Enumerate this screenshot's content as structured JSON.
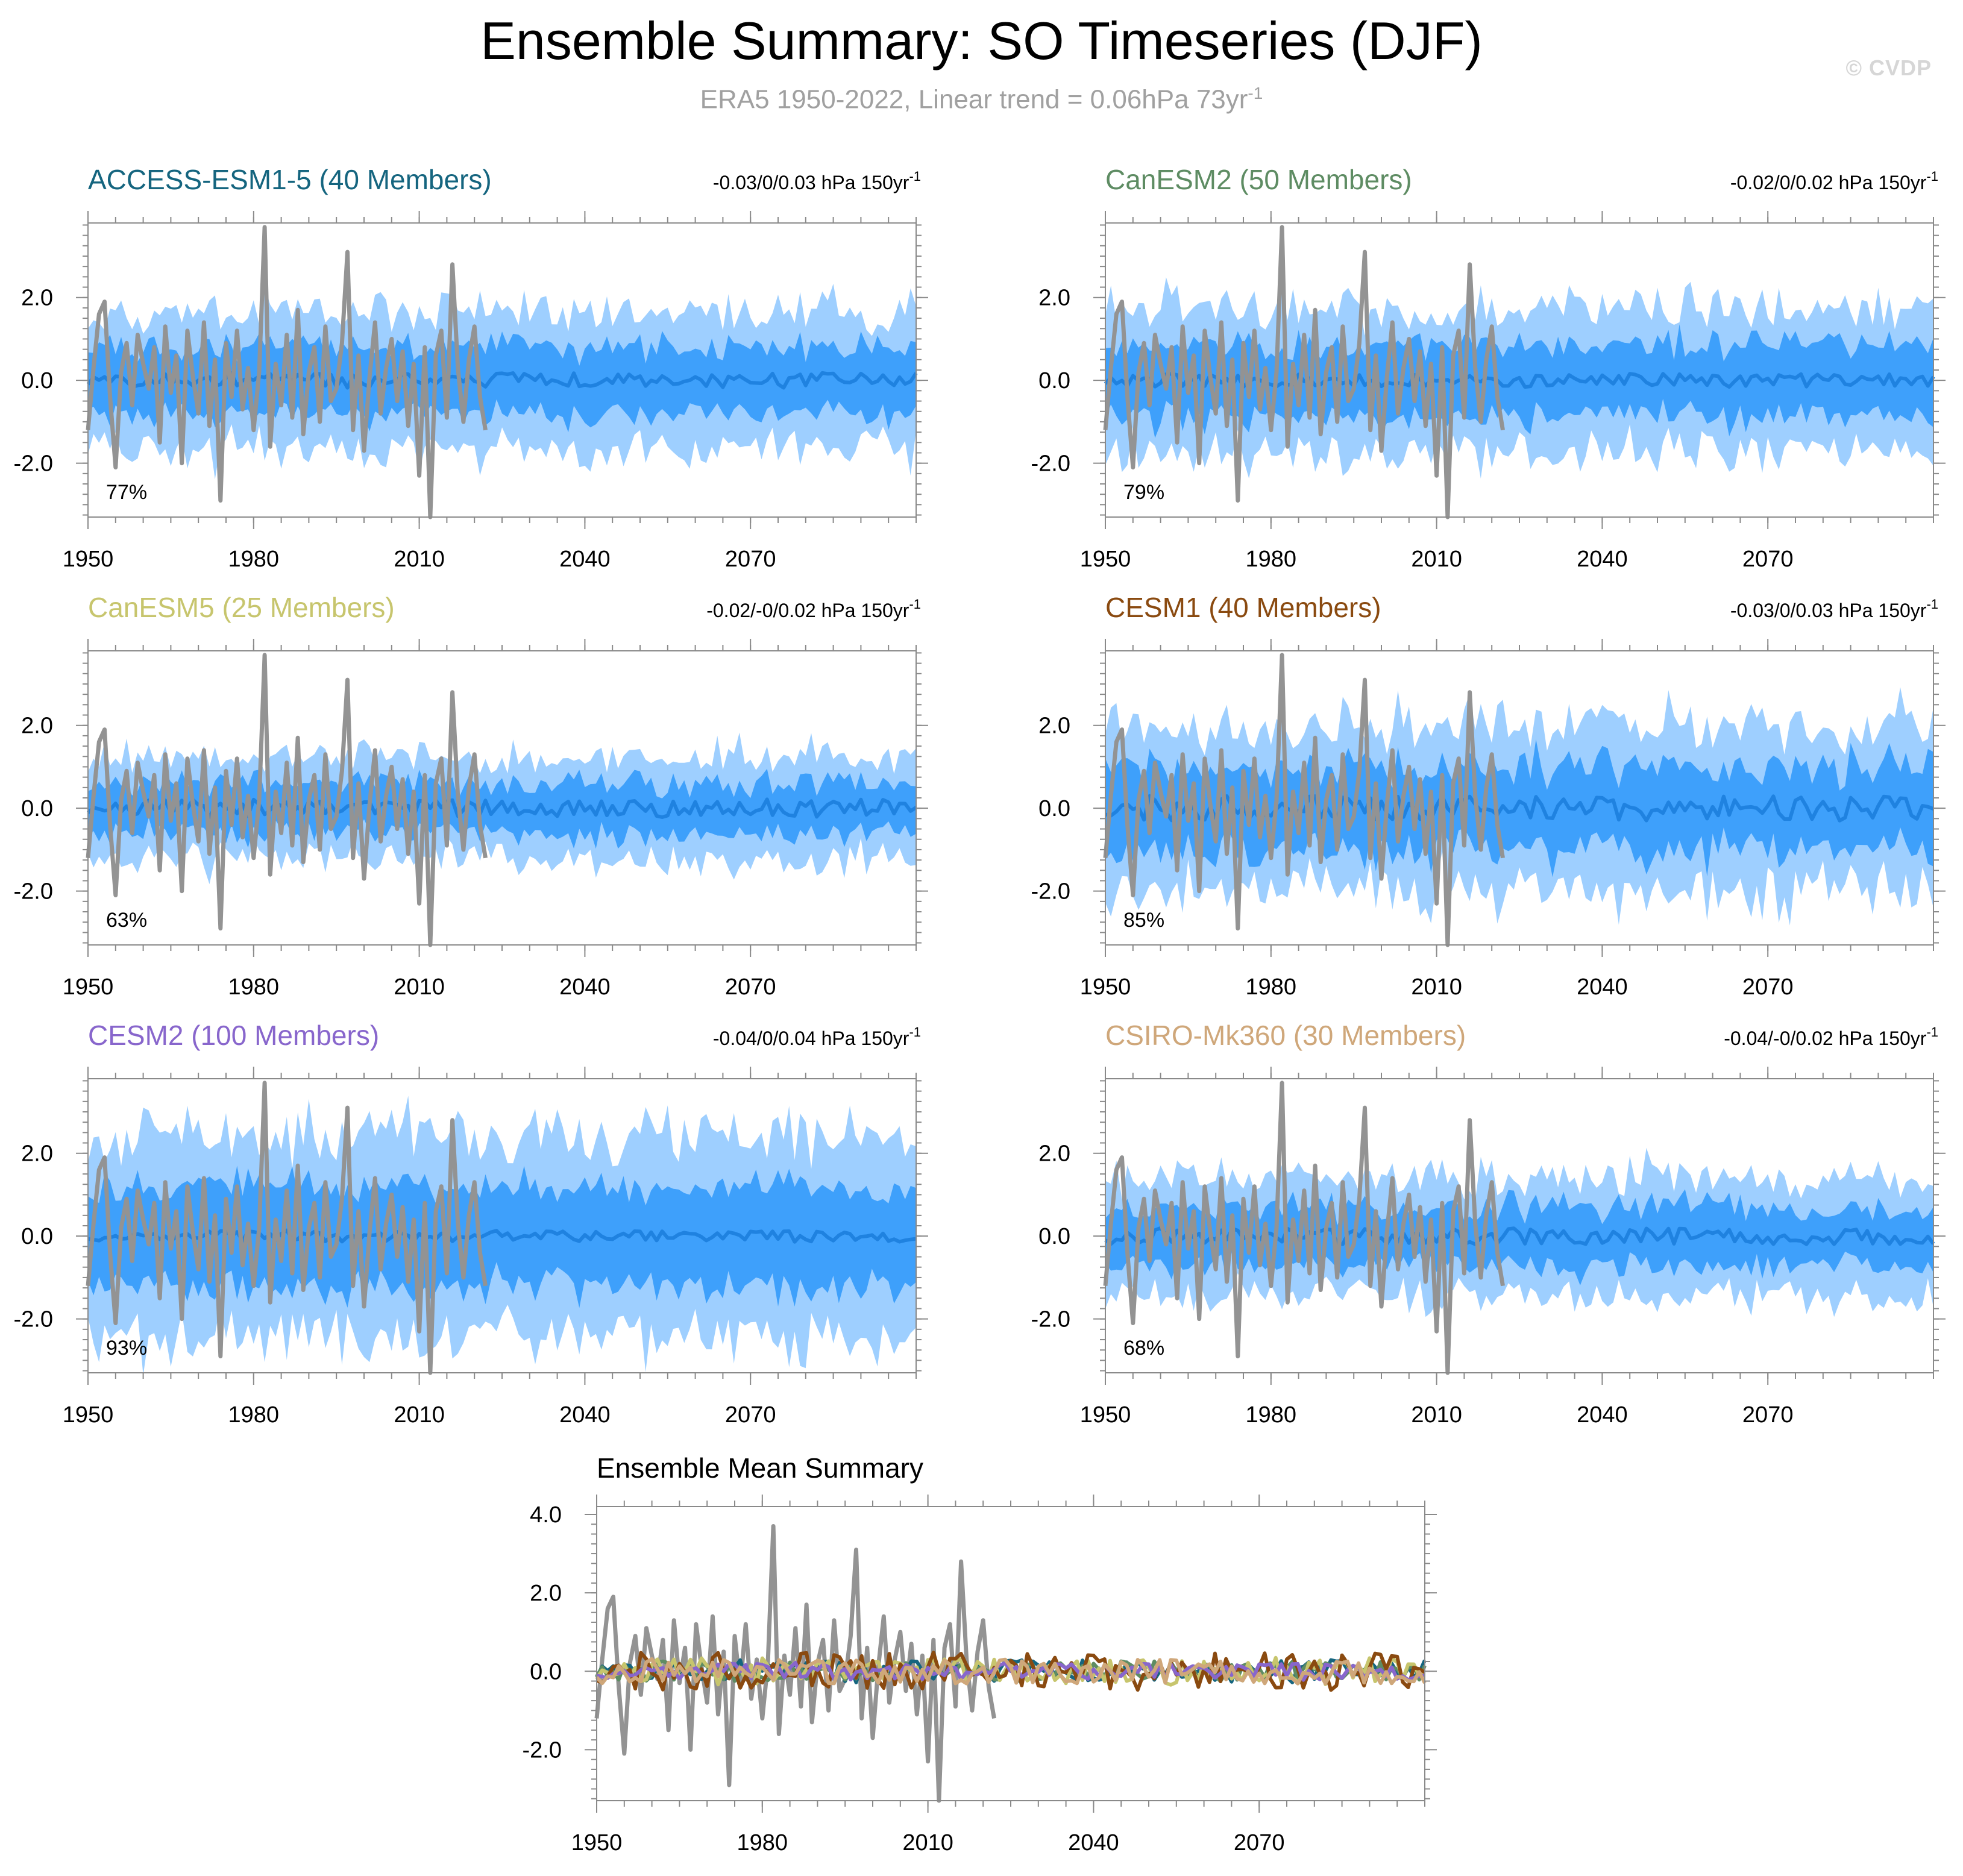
{
  "figure": {
    "title": "Ensemble Summary: SO Timeseries (DJF)",
    "subtitle_main": "ERA5 1950-2022, Linear trend = 0.06hPa 73yr",
    "subtitle_sup": "-1",
    "watermark": "© CVDP"
  },
  "colors": {
    "outer_band": "#9ecfff",
    "inner_band": "#3ea0fb",
    "ensemble_mean": "#1f82e0",
    "observations": "#939393"
  },
  "chart_data": [
    {
      "type": "area",
      "model": "ACCESS-ESM1-5",
      "members_label": "(40 Members)",
      "title_color": "#15657f",
      "trend_text": "-0.03/0/0.03 hPa 150yr",
      "trend_sup": "-1",
      "percent": "77%",
      "xlim": [
        1950,
        2100
      ],
      "ylim": [
        -3.3,
        3.8
      ],
      "xticks": [
        "1950",
        "1980",
        "2010",
        "2040",
        "2070"
      ],
      "yticks": [
        "2.0",
        "0.0",
        "-2.0"
      ],
      "spread_outer": 1.6,
      "spread_inner": 0.8,
      "mean_amp": 0.18,
      "seed": 11
    },
    {
      "type": "area",
      "model": "CanESM2",
      "members_label": "(50 Members)",
      "title_color": "#5e8c63",
      "trend_text": "-0.02/0/0.02 hPa 150yr",
      "trend_sup": "-1",
      "percent": "79%",
      "xlim": [
        1950,
        2100
      ],
      "ylim": [
        -3.3,
        3.8
      ],
      "xticks": [
        "1950",
        "1980",
        "2010",
        "2040",
        "2070"
      ],
      "yticks": [
        "2.0",
        "0.0",
        "-2.0"
      ],
      "spread_outer": 1.7,
      "spread_inner": 0.85,
      "mean_amp": 0.16,
      "seed": 23
    },
    {
      "type": "area",
      "model": "CanESM5",
      "members_label": "(25 Members)",
      "title_color": "#c7c56d",
      "trend_text": "-0.02/-0/0.02 hPa 150yr",
      "trend_sup": "-1",
      "percent": "63%",
      "xlim": [
        1950,
        2100
      ],
      "ylim": [
        -3.3,
        3.8
      ],
      "xticks": [
        "1950",
        "1980",
        "2010",
        "2040",
        "2070"
      ],
      "yticks": [
        "2.0",
        "0.0",
        "-2.0"
      ],
      "spread_outer": 1.2,
      "spread_inner": 0.6,
      "mean_amp": 0.22,
      "seed": 37
    },
    {
      "type": "area",
      "model": "CESM1",
      "members_label": "(40 Members)",
      "title_color": "#8a4a10",
      "trend_text": "-0.03/0/0.03 hPa 150yr",
      "trend_sup": "-1",
      "percent": "85%",
      "xlim": [
        1950,
        2100
      ],
      "ylim": [
        -3.3,
        3.8
      ],
      "xticks": [
        "1950",
        "1980",
        "2010",
        "2040",
        "2070"
      ],
      "yticks": [
        "2.0",
        "0.0",
        "-2.0"
      ],
      "spread_outer": 1.9,
      "spread_inner": 1.0,
      "mean_amp": 0.3,
      "seed": 41
    },
    {
      "type": "area",
      "model": "CESM2",
      "members_label": "(100 Members)",
      "title_color": "#8866cc",
      "trend_text": "-0.04/0/0.04 hPa 150yr",
      "trend_sup": "-1",
      "percent": "93%",
      "xlim": [
        1950,
        2100
      ],
      "ylim": [
        -3.3,
        3.8
      ],
      "xticks": [
        "1950",
        "1980",
        "2010",
        "2040",
        "2070"
      ],
      "yticks": [
        "2.0",
        "0.0",
        "-2.0"
      ],
      "spread_outer": 2.4,
      "spread_inner": 1.2,
      "mean_amp": 0.14,
      "seed": 53
    },
    {
      "type": "area",
      "model": "CSIRO-Mk360",
      "members_label": "(30 Members)",
      "title_color": "#cfa77a",
      "trend_text": "-0.04/-0/0.02 hPa 150yr",
      "trend_sup": "-1",
      "percent": "68%",
      "xlim": [
        1950,
        2100
      ],
      "ylim": [
        -3.3,
        3.8
      ],
      "xticks": [
        "1950",
        "1980",
        "2010",
        "2040",
        "2070"
      ],
      "yticks": [
        "2.0",
        "0.0",
        "-2.0"
      ],
      "spread_outer": 1.4,
      "spread_inner": 0.7,
      "mean_amp": 0.2,
      "seed": 67
    },
    {
      "type": "line",
      "model": "Ensemble Mean Summary",
      "xlim": [
        1950,
        2100
      ],
      "ylim": [
        -3.3,
        4.2
      ],
      "xticks": [
        "1950",
        "1980",
        "2010",
        "2040",
        "2070"
      ],
      "yticks": [
        "4.0",
        "2.0",
        "0.0",
        "-2.0"
      ],
      "series_colors": [
        "#15657f",
        "#5e8c63",
        "#c7c56d",
        "#8a4a10",
        "#8866cc",
        "#cfa77a"
      ]
    }
  ],
  "observed_series": {
    "name": "ERA5",
    "x_start": 1950,
    "values": [
      -1.2,
      0.3,
      1.6,
      1.9,
      -0.4,
      -2.1,
      0.2,
      0.9,
      -0.6,
      1.1,
      0.4,
      -0.2,
      0.8,
      -1.5,
      1.3,
      -0.3,
      0.6,
      -2.0,
      1.2,
      0.1,
      -0.8,
      1.4,
      -1.1,
      0.5,
      -2.9,
      0.9,
      -0.4,
      1.2,
      -0.7,
      0.3,
      -1.2,
      0.2,
      3.7,
      -1.6,
      0.4,
      -0.6,
      1.1,
      -0.9,
      1.7,
      -1.3,
      0.2,
      0.8,
      -1.0,
      1.3,
      -0.5,
      -0.2,
      0.9,
      3.1,
      -1.2,
      0.6,
      -1.7,
      0.1,
      1.4,
      -0.8,
      0.3,
      1.0,
      -0.5,
      0.7,
      -1.1,
      0.4,
      -2.3,
      0.8,
      -3.3,
      0.6,
      1.2,
      -0.9,
      2.8,
      0.3,
      -1.0,
      0.5,
      1.3,
      -0.4,
      -1.2
    ]
  }
}
